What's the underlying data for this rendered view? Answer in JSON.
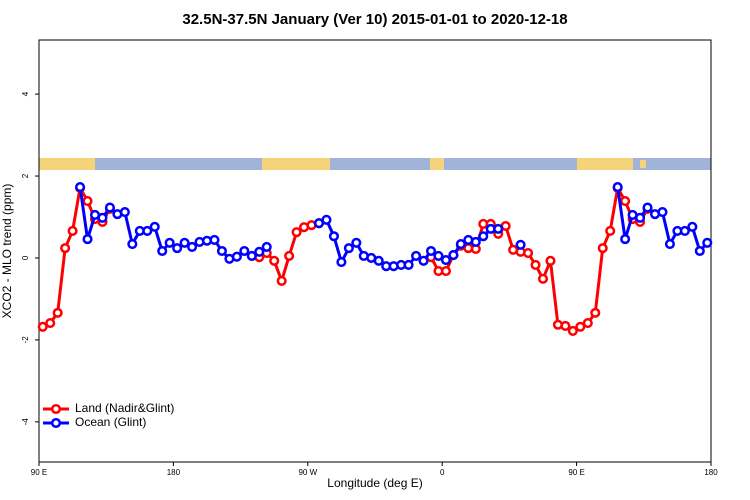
{
  "chart_data": {
    "type": "line",
    "title": "32.5N-37.5N January (Ver 10)   2015-01-01 to 2020-12-18",
    "x_label": "Longitude (deg E)",
    "y_label": "XCO2 - MLO trend (ppm)",
    "xlim": [
      90,
      540
    ],
    "ylim": [
      -4.98,
      5.32
    ],
    "xticks": [
      {
        "value": 90,
        "label": "90 E"
      },
      180,
      {
        "value": 270,
        "label": "90 W"
      },
      {
        "value": 360,
        "label": "0"
      },
      {
        "value": 450,
        "label": "90 E"
      },
      {
        "value": 540,
        "label": "180"
      }
    ],
    "yticks": [
      -4,
      -2,
      0,
      2,
      4
    ],
    "legend": "bottomleft",
    "x": [
      92.5,
      97.5,
      102.5,
      107.5,
      112.5,
      117.5,
      122.5,
      127.5,
      132.5,
      137.5,
      142.5,
      147.5,
      152.5,
      157.5,
      162.5,
      167.5,
      172.5,
      177.5,
      182.5,
      187.5,
      192.5,
      197.5,
      202.5,
      207.5,
      212.5,
      217.5,
      222.5,
      227.5,
      232.5,
      237.5,
      242.5,
      247.5,
      252.5,
      257.5,
      262.5,
      267.5,
      272.5,
      277.5,
      282.5,
      287.5,
      292.5,
      297.5,
      302.5,
      307.5,
      312.5,
      317.5,
      322.5,
      327.5,
      332.5,
      337.5,
      342.5,
      347.5,
      352.5,
      357.5,
      362.5,
      367.5,
      372.5,
      377.5,
      382.5,
      387.5,
      392.5,
      397.5,
      402.5,
      407.5,
      412.5,
      417.5,
      422.5,
      427.5,
      432.5,
      437.5,
      442.5,
      447.5,
      452.5,
      457.5,
      462.5,
      467.5,
      472.5,
      477.5,
      482.5,
      487.5,
      492.5,
      497.5,
      502.5,
      507.5,
      512.5,
      517.5,
      522.5,
      527.5,
      532.5,
      537.5
    ],
    "series": [
      {
        "name": "Land (Nadir&Glint)",
        "color": "#ff0000",
        "values": [
          -1.68,
          -1.59,
          -1.34,
          0.24,
          0.66,
          1.71,
          1.39,
          0.95,
          0.88,
          1.2,
          null,
          null,
          null,
          null,
          null,
          null,
          null,
          null,
          null,
          null,
          null,
          null,
          null,
          null,
          null,
          null,
          null,
          null,
          null,
          0.02,
          0.12,
          -0.07,
          -0.56,
          0.05,
          0.63,
          0.75,
          0.8,
          0.85,
          null,
          null,
          null,
          null,
          null,
          null,
          null,
          null,
          null,
          null,
          null,
          null,
          null,
          null,
          0.02,
          -0.32,
          -0.32,
          0.07,
          0.3,
          0.24,
          0.22,
          0.83,
          0.83,
          0.59,
          0.78,
          0.2,
          0.15,
          0.12,
          -0.17,
          -0.51,
          -0.07,
          -1.63,
          -1.66,
          -1.78,
          -1.68,
          -1.59,
          -1.34,
          0.24,
          0.66,
          1.71,
          1.39,
          0.95,
          0.88,
          1.2,
          null,
          null,
          null,
          null,
          null,
          null,
          null,
          null
        ]
      },
      {
        "name": "Ocean (Glint)",
        "color": "#0000ff",
        "values": [
          null,
          null,
          null,
          null,
          null,
          1.73,
          0.46,
          1.05,
          0.98,
          1.23,
          1.07,
          1.12,
          0.34,
          0.66,
          0.66,
          0.76,
          0.17,
          0.37,
          0.24,
          0.37,
          0.27,
          0.39,
          0.42,
          0.44,
          0.17,
          -0.02,
          0.03,
          0.17,
          0.05,
          0.15,
          0.27,
          null,
          null,
          null,
          null,
          null,
          null,
          0.85,
          0.93,
          0.53,
          -0.1,
          0.24,
          0.37,
          0.05,
          0.0,
          -0.07,
          -0.2,
          -0.2,
          -0.17,
          -0.17,
          0.05,
          -0.07,
          0.17,
          0.05,
          -0.05,
          0.07,
          0.34,
          0.44,
          0.39,
          0.53,
          0.71,
          0.71,
          null,
          null,
          0.32,
          null,
          null,
          null,
          null,
          null,
          null,
          null,
          null,
          null,
          null,
          null,
          null,
          1.73,
          0.46,
          1.05,
          0.98,
          1.23,
          1.07,
          1.12,
          0.34,
          0.66,
          0.66,
          0.76,
          0.17,
          0.37
        ]
      }
    ]
  }
}
